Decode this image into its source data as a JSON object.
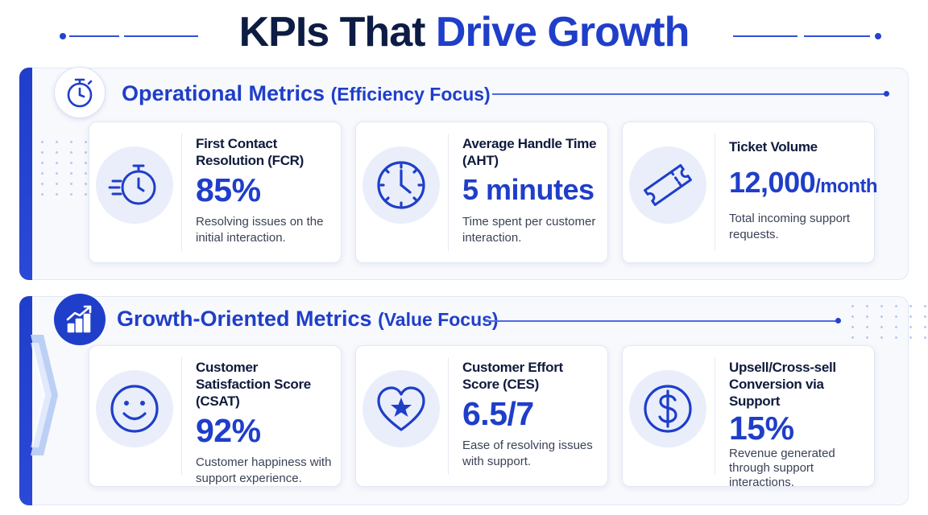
{
  "title": {
    "part1": "KPIs That",
    "part2": "Drive Growth"
  },
  "colors": {
    "primary": "#1f3ec9",
    "dark_text": "#0d1c44",
    "card_bg": "#ffffff",
    "panel_bg": "#f7f9fd",
    "icon_bg": "#e9eefa"
  },
  "sections": [
    {
      "title": "Operational Metrics",
      "subtitle": "(Efficiency Focus)",
      "icon": "stopwatch-icon",
      "cards": [
        {
          "icon": "fast-stopwatch-icon",
          "label": "First Contact Resolution (FCR)",
          "value": "85%",
          "unit": "",
          "desc": "Resolving issues on the initial interaction."
        },
        {
          "icon": "clock-icon",
          "label": "Average Handle Time (AHT)",
          "value": "5 minutes",
          "unit": "",
          "desc": "Time spent per customer interaction."
        },
        {
          "icon": "ticket-icon",
          "label": "Ticket Volume",
          "value": "12,000",
          "unit": "/month",
          "desc": "Total incoming support requests."
        }
      ]
    },
    {
      "title": "Growth-Oriented Metrics",
      "subtitle": "(Value Focus)",
      "icon": "bar-chart-growth-icon",
      "cards": [
        {
          "icon": "smiley-icon",
          "label": "Customer Satisfaction Score (CSAT)",
          "value": "92%",
          "unit": "",
          "desc": "Customer happiness with support experience."
        },
        {
          "icon": "heart-star-icon",
          "label": "Customer Effort Score (CES)",
          "value": "6.5/7",
          "unit": "",
          "desc": "Ease of resolving issues with support."
        },
        {
          "icon": "dollar-icon",
          "label": "Upsell/Cross-sell Conversion via Support",
          "value": "15%",
          "unit": "",
          "desc": "Revenue generated through support interactions."
        }
      ]
    }
  ]
}
